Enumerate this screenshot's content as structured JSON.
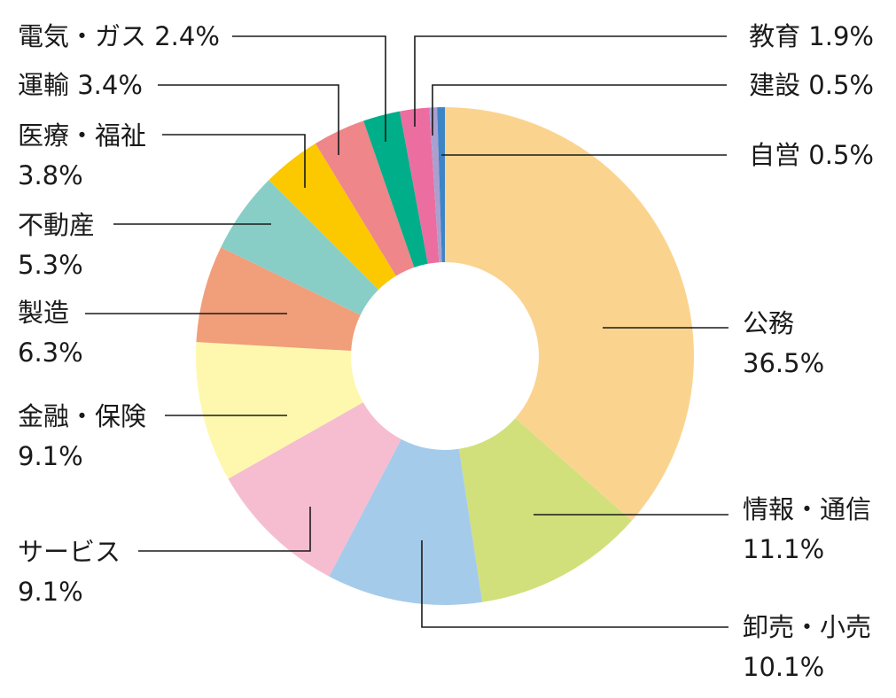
{
  "chart_data": {
    "type": "donut",
    "unit": "%",
    "slices": [
      {
        "name": "公務",
        "value": 36.5,
        "color": "#FAD48F"
      },
      {
        "name": "情報・通信",
        "value": 11.1,
        "color": "#D1E07A"
      },
      {
        "name": "卸売・小売",
        "value": 10.1,
        "color": "#A5CBEB"
      },
      {
        "name": "サービス",
        "value": 9.1,
        "color": "#F6BDD0"
      },
      {
        "name": "金融・保険",
        "value": 9.1,
        "color": "#FEF8AE"
      },
      {
        "name": "製造",
        "value": 6.3,
        "color": "#F19E7A"
      },
      {
        "name": "不動産",
        "value": 5.3,
        "color": "#88CEC7"
      },
      {
        "name": "医療・福祉",
        "value": 3.8,
        "color": "#FCC800"
      },
      {
        "name": "運輸",
        "value": 3.4,
        "color": "#EE868A"
      },
      {
        "name": "電気・ガス",
        "value": 2.4,
        "color": "#00AE89"
      },
      {
        "name": "教育",
        "value": 1.9,
        "color": "#EC6D9F"
      },
      {
        "name": "建設",
        "value": 0.5,
        "color": "#AAA0D0"
      },
      {
        "name": "自営",
        "value": 0.5,
        "color": "#3C84C6"
      }
    ]
  }
}
